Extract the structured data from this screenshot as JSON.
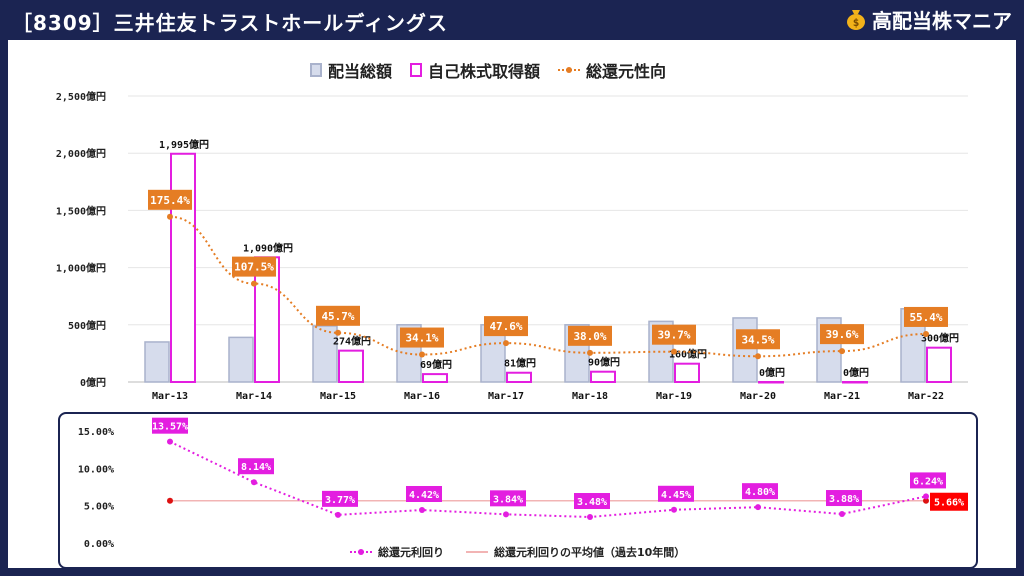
{
  "header": {
    "title": "［8309］三井住友トラストホールディングス",
    "brand": "高配当株マニア",
    "brand_icon": "money-bag-icon"
  },
  "colors": {
    "total_fill": "#d6dcec",
    "total_stroke": "#a9b2cc",
    "buyback_stroke": "#e31ee0",
    "ratio": "#e57d24",
    "yield": "#e31ee0",
    "avg_line": "#f2b4b4",
    "avg_label": "#ff0000",
    "frame": "#1b2452"
  },
  "chart_data": [
    {
      "type": "bar",
      "legend": [
        "配当総額",
        "自己株式取得額",
        "総還元性向"
      ],
      "categories": [
        "Mar-13",
        "Mar-14",
        "Mar-15",
        "Mar-16",
        "Mar-17",
        "Mar-18",
        "Mar-19",
        "Mar-20",
        "Mar-21",
        "Mar-22"
      ],
      "y_ticks": [
        "0億円",
        "500億円",
        "1,000億円",
        "1,500億円",
        "2,000億円",
        "2,500億円"
      ],
      "ylim": [
        0,
        2500
      ],
      "series": [
        {
          "name": "配当総額",
          "values": [
            350,
            390,
            490,
            500,
            500,
            500,
            530,
            560,
            560,
            640
          ]
        },
        {
          "name": "自己株式取得額",
          "values": [
            1995,
            1090,
            274,
            69,
            81,
            90,
            160,
            0,
            0,
            300
          ],
          "labels": [
            "1,995億円",
            "1,090億円",
            "274億円",
            "69億円",
            "81億円",
            "90億円",
            "160億円",
            "0億円",
            "0億円",
            "300億円"
          ]
        },
        {
          "name": "総還元性向",
          "values": [
            1444,
            860,
            430,
            240,
            340,
            255,
            265,
            225,
            270,
            420
          ],
          "labels": [
            "175.4%",
            "107.5%",
            "45.7%",
            "34.1%",
            "47.6%",
            "38.0%",
            "39.7%",
            "34.5%",
            "39.6%",
            "55.4%"
          ]
        }
      ],
      "grid": true,
      "legend_position": "top"
    },
    {
      "type": "line",
      "categories": [
        "Mar-13",
        "Mar-14",
        "Mar-15",
        "Mar-16",
        "Mar-17",
        "Mar-18",
        "Mar-19",
        "Mar-20",
        "Mar-21",
        "Mar-22"
      ],
      "y_ticks": [
        "0.00%",
        "5.00%",
        "10.00%",
        "15.00%"
      ],
      "ylim": [
        0,
        15
      ],
      "series": [
        {
          "name": "総還元利回り",
          "values": [
            13.57,
            8.14,
            3.77,
            4.42,
            3.84,
            3.48,
            4.45,
            4.8,
            3.88,
            6.24
          ],
          "labels": [
            "13.57%",
            "8.14%",
            "3.77%",
            "4.42%",
            "3.84%",
            "3.48%",
            "4.45%",
            "4.80%",
            "3.88%",
            "6.24%"
          ]
        },
        {
          "name": "総還元利回りの平均値（過去10年間）",
          "value": 5.66,
          "label": "5.66%"
        }
      ],
      "legend_position": "bottom"
    }
  ]
}
